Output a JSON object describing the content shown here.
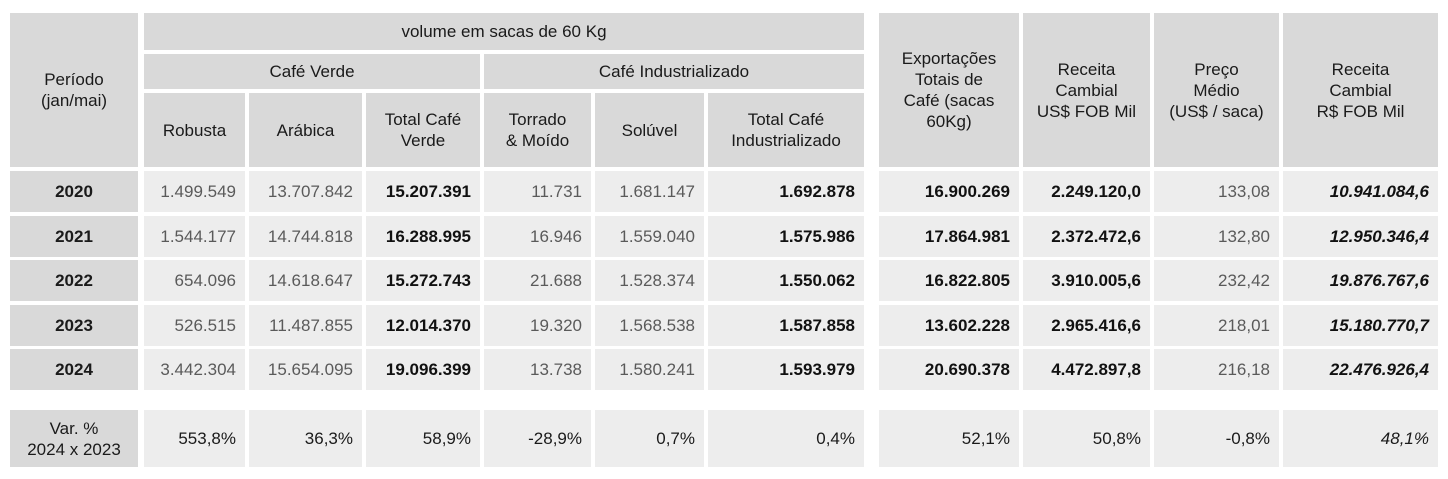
{
  "headers": {
    "periodo": "Período\n(jan/mai)",
    "volume": "volume em sacas de 60 Kg",
    "cafe_verde": "Café Verde",
    "cafe_industrializado": "Café Industrializado",
    "robusta": "Robusta",
    "arabica": "Arábica",
    "total_cafe_verde": "Total Café\nVerde",
    "torrado_moido": "Torrado\n& Moído",
    "soluvel": "Solúvel",
    "total_cafe_industrializado": "Total Café\nIndustrializado",
    "exportacoes": "Exportações\nTotais de\nCafé (sacas\n60Kg)",
    "receita_usd": "Receita\nCambial\nUS$ FOB Mil",
    "preco_medio": "Preço\nMédio\n(US$ / saca)",
    "receita_brl": "Receita\nCambial\nR$ FOB Mil"
  },
  "rows": [
    {
      "periodo": "2020",
      "robusta": "1.499.549",
      "arabica": "13.707.842",
      "total_verde": "15.207.391",
      "torrado": "11.731",
      "soluvel": "1.681.147",
      "total_ind": "1.692.878",
      "exportacoes": "16.900.269",
      "receita_usd": "2.249.120,0",
      "preco": "133,08",
      "receita_brl": "10.941.084,6"
    },
    {
      "periodo": "2021",
      "robusta": "1.544.177",
      "arabica": "14.744.818",
      "total_verde": "16.288.995",
      "torrado": "16.946",
      "soluvel": "1.559.040",
      "total_ind": "1.575.986",
      "exportacoes": "17.864.981",
      "receita_usd": "2.372.472,6",
      "preco": "132,80",
      "receita_brl": "12.950.346,4"
    },
    {
      "periodo": "2022",
      "robusta": "654.096",
      "arabica": "14.618.647",
      "total_verde": "15.272.743",
      "torrado": "21.688",
      "soluvel": "1.528.374",
      "total_ind": "1.550.062",
      "exportacoes": "16.822.805",
      "receita_usd": "3.910.005,6",
      "preco": "232,42",
      "receita_brl": "19.876.767,6"
    },
    {
      "periodo": "2023",
      "robusta": "526.515",
      "arabica": "11.487.855",
      "total_verde": "12.014.370",
      "torrado": "19.320",
      "soluvel": "1.568.538",
      "total_ind": "1.587.858",
      "exportacoes": "13.602.228",
      "receita_usd": "2.965.416,6",
      "preco": "218,01",
      "receita_brl": "15.180.770,7"
    },
    {
      "periodo": "2024",
      "robusta": "3.442.304",
      "arabica": "15.654.095",
      "total_verde": "19.096.399",
      "torrado": "13.738",
      "soluvel": "1.580.241",
      "total_ind": "1.593.979",
      "exportacoes": "20.690.378",
      "receita_usd": "4.472.897,8",
      "preco": "216,18",
      "receita_brl": "22.476.926,4"
    }
  ],
  "variation": {
    "label": "Var. %\n2024 x 2023",
    "robusta": "553,8%",
    "arabica": "36,3%",
    "total_verde": "58,9%",
    "torrado": "-28,9%",
    "soluvel": "0,7%",
    "total_ind": "0,4%",
    "exportacoes": "52,1%",
    "receita_usd": "50,8%",
    "preco": "-0,8%",
    "receita_brl": "48,1%"
  }
}
